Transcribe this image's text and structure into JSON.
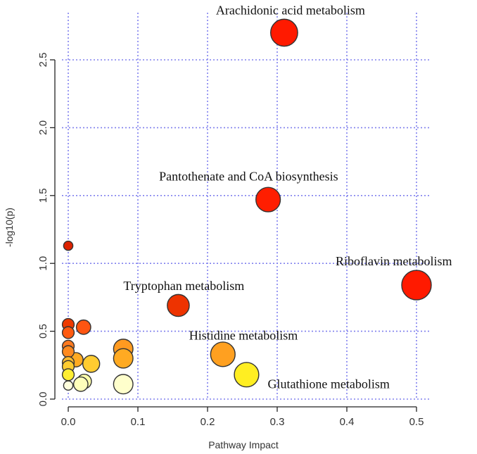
{
  "chart_data": {
    "type": "scatter",
    "title": "",
    "xlabel": "Pathway Impact",
    "ylabel": "-log10(p)",
    "xlim": [
      -0.02,
      0.51
    ],
    "ylim": [
      -0.05,
      2.84
    ],
    "xticks": [
      0.0,
      0.1,
      0.2,
      0.3,
      0.4,
      0.5
    ],
    "xtick_labels": [
      "0.0",
      "0.1",
      "0.2",
      "0.3",
      "0.4",
      "0.5"
    ],
    "yticks": [
      0.0,
      0.5,
      1.0,
      1.5,
      2.0,
      2.5
    ],
    "ytick_labels": [
      "0.0",
      "0.5",
      "1.0",
      "1.5",
      "2.0",
      "2.5"
    ],
    "grid": true,
    "points": [
      {
        "x": 0.31,
        "y": 2.7,
        "size": 9,
        "color": "#ff1a00",
        "label": "Arachidonic acid metabolism"
      },
      {
        "x": 0.287,
        "y": 1.47,
        "size": 8,
        "color": "#ff1e00",
        "label": "Pantothenate and CoA biosynthesis"
      },
      {
        "x": 0.5,
        "y": 0.84,
        "size": 10,
        "color": "#ff1a00",
        "label": "Riboflavin metabolism"
      },
      {
        "x": 0.158,
        "y": 0.69,
        "size": 7,
        "color": "#ee3300",
        "label": "Tryptophan metabolism"
      },
      {
        "x": 0.222,
        "y": 0.33,
        "size": 8,
        "color": "#ffa020",
        "label": "Histidine metabolism"
      },
      {
        "x": 0.256,
        "y": 0.18,
        "size": 8,
        "color": "#ffee22",
        "label": "Glutathione metabolism"
      },
      {
        "x": 0.0,
        "y": 1.13,
        "size": 2,
        "color": "#dd2200",
        "label": ""
      },
      {
        "x": 0.0,
        "y": 0.55,
        "size": 3,
        "color": "#ee3a00",
        "label": ""
      },
      {
        "x": 0.0,
        "y": 0.49,
        "size": 3,
        "color": "#ff5a10",
        "label": ""
      },
      {
        "x": 0.022,
        "y": 0.53,
        "size": 4,
        "color": "#ff5511",
        "label": ""
      },
      {
        "x": 0.0,
        "y": 0.39,
        "size": 3,
        "color": "#ff7a20",
        "label": ""
      },
      {
        "x": 0.0,
        "y": 0.35,
        "size": 3,
        "color": "#ff8a20",
        "label": ""
      },
      {
        "x": 0.0,
        "y": 0.27,
        "size": 3,
        "color": "#ffbb30",
        "label": ""
      },
      {
        "x": 0.0,
        "y": 0.24,
        "size": 3,
        "color": "#ffcc30",
        "label": ""
      },
      {
        "x": 0.0,
        "y": 0.18,
        "size": 3,
        "color": "#ffee33",
        "label": ""
      },
      {
        "x": 0.0,
        "y": 0.1,
        "size": 2,
        "color": "#ffffdd",
        "label": ""
      },
      {
        "x": 0.011,
        "y": 0.29,
        "size": 4,
        "color": "#ffaa22",
        "label": ""
      },
      {
        "x": 0.033,
        "y": 0.26,
        "size": 5,
        "color": "#ffcc30",
        "label": ""
      },
      {
        "x": 0.023,
        "y": 0.13,
        "size": 4,
        "color": "#ffffaa",
        "label": ""
      },
      {
        "x": 0.018,
        "y": 0.11,
        "size": 4,
        "color": "#ffffbb",
        "label": ""
      },
      {
        "x": 0.079,
        "y": 0.37,
        "size": 6,
        "color": "#ff9a20",
        "label": ""
      },
      {
        "x": 0.079,
        "y": 0.3,
        "size": 6,
        "color": "#ffaa22",
        "label": ""
      },
      {
        "x": 0.079,
        "y": 0.11,
        "size": 6,
        "color": "#ffffcc",
        "label": ""
      }
    ]
  }
}
